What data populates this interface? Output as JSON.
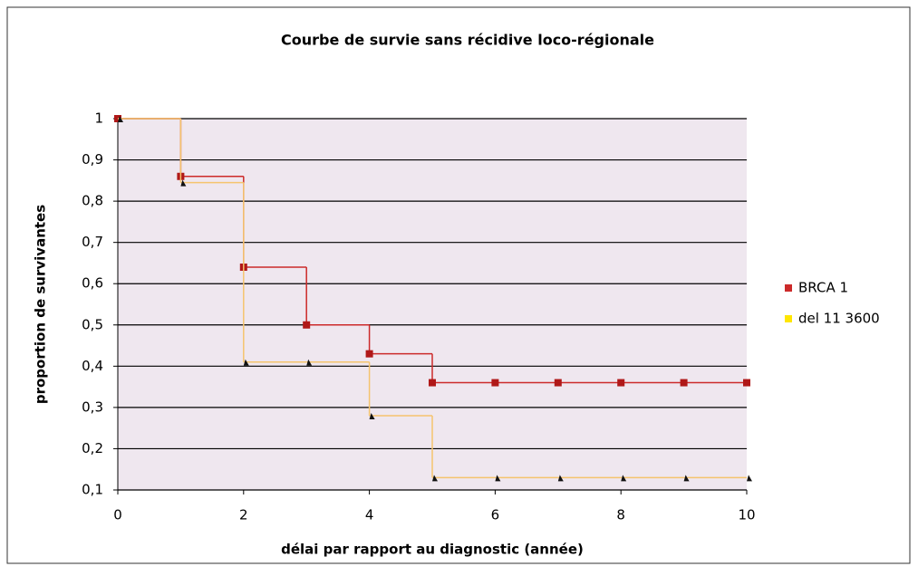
{
  "chart_data": {
    "type": "step",
    "title": "Courbe de survie sans récidive loco-régionale",
    "x_label": "délai par rapport au diagnostic (année)",
    "y_label": "proportion de survivantes",
    "x": [
      0,
      1,
      2,
      3,
      4,
      5,
      6,
      7,
      8,
      9,
      10
    ],
    "series": [
      {
        "name": "BRCA 1",
        "color": "#cc2a2a",
        "marker": "square",
        "values": [
          1,
          0.86,
          0.64,
          0.5,
          0.43,
          0.36,
          0.36,
          0.36,
          0.36,
          0.36,
          0.36
        ]
      },
      {
        "name": "del 11  3600",
        "color": "#f5c46e",
        "marker": "triangle",
        "values": [
          1,
          0.845,
          0.41,
          0.41,
          0.28,
          0.13,
          0.13,
          0.13,
          0.13,
          0.13,
          0.13
        ]
      }
    ],
    "xlim": [
      0,
      10
    ],
    "xticks": [
      0,
      2,
      4,
      6,
      8,
      10
    ],
    "ylim": [
      0.1,
      1
    ],
    "yticks": [
      {
        "value": 0.1,
        "label": "0,1"
      },
      {
        "value": 0.2,
        "label": "0,2"
      },
      {
        "value": 0.3,
        "label": "0,3"
      },
      {
        "value": 0.4,
        "label": "0,4"
      },
      {
        "value": 0.5,
        "label": "0,5"
      },
      {
        "value": 0.6,
        "label": "0,6"
      },
      {
        "value": 0.7,
        "label": "0,7"
      },
      {
        "value": 0.8,
        "label": "0,8"
      },
      {
        "value": 0.9,
        "label": "0,9"
      },
      1
    ],
    "grid": true,
    "legend": "right"
  }
}
